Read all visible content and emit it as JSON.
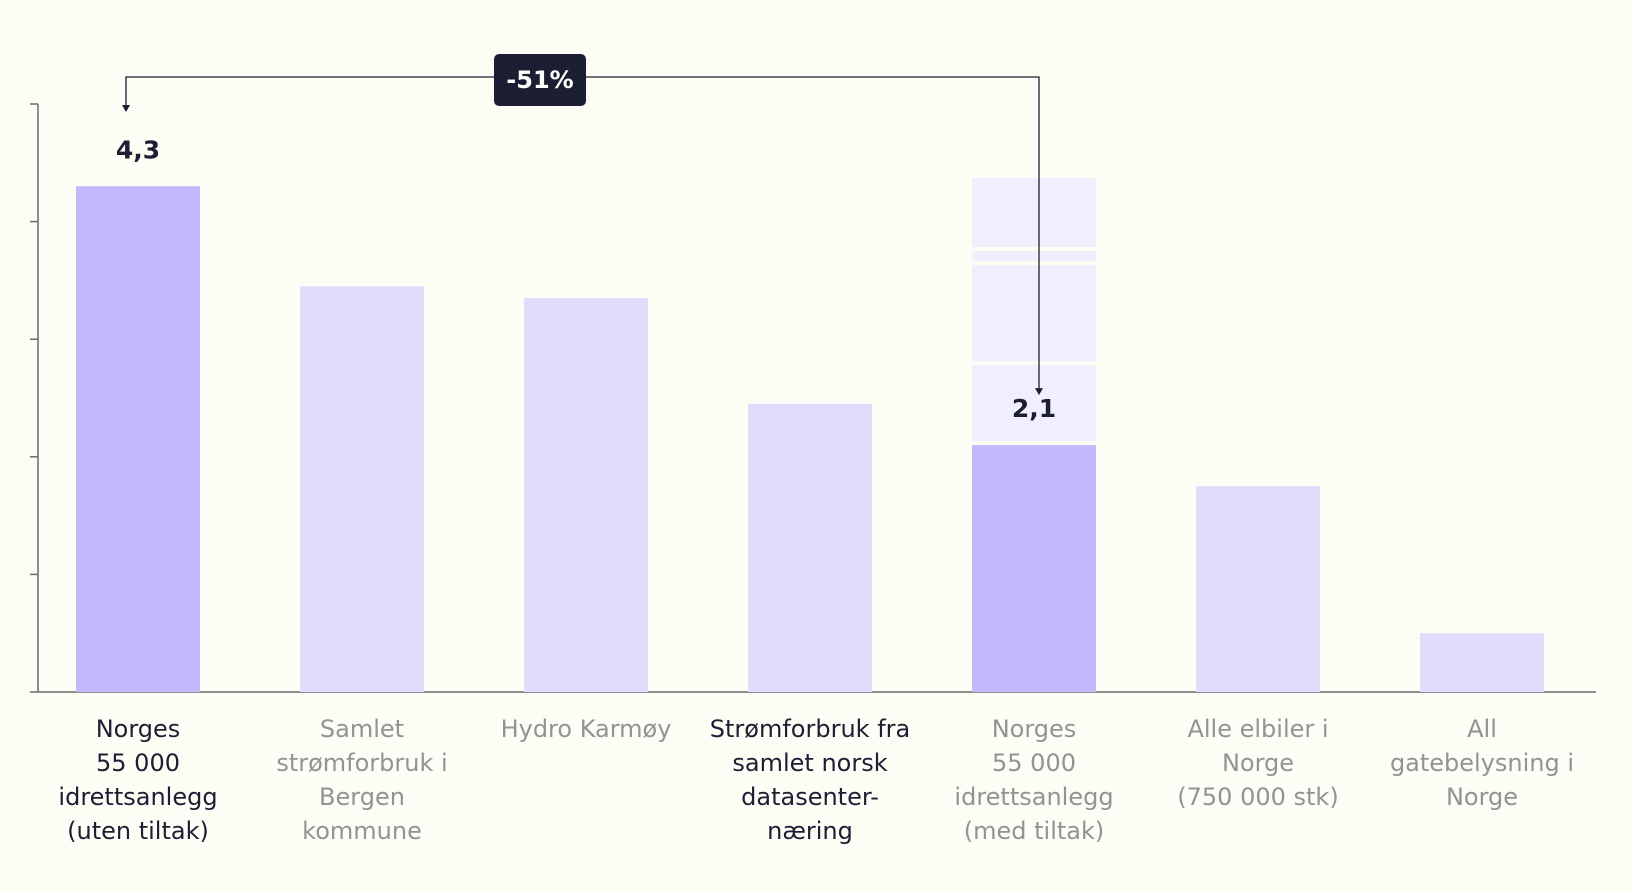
{
  "chart_data": {
    "type": "bar",
    "title": "",
    "xlabel": "",
    "ylabel": "",
    "ylim": [
      0,
      5.2
    ],
    "y_ticks": [
      0,
      1,
      2,
      3,
      4,
      5
    ],
    "y_tick_labels_shown": false,
    "grid": false,
    "categories": [
      {
        "lines": [
          "Norges",
          "55 000",
          "idrettsanlegg",
          "(uten tiltak)"
        ],
        "emphasis": true
      },
      {
        "lines": [
          "Samlet",
          "strømforbruk i",
          "Bergen",
          "kommune"
        ],
        "emphasis": false
      },
      {
        "lines": [
          "Hydro Karmøy"
        ],
        "emphasis": false
      },
      {
        "lines": [
          "Strømforbruk fra",
          "samlet norsk",
          "datasenter-",
          "næring"
        ],
        "emphasis": true
      },
      {
        "lines": [
          "Norges",
          "55 000",
          "idrettsanlegg",
          "(med tiltak)"
        ],
        "emphasis": false
      },
      {
        "lines": [
          "Alle elbiler i",
          "Norge",
          "(750 000 stk)"
        ],
        "emphasis": false
      },
      {
        "lines": [
          "All",
          "gatebelysning i",
          "Norge"
        ],
        "emphasis": false
      }
    ],
    "values": [
      4.3,
      3.45,
      3.35,
      2.45,
      2.1,
      1.75,
      0.5
    ],
    "value_labels": [
      "4,3",
      "",
      "",
      "",
      "2,1",
      "",
      ""
    ],
    "highlighted": [
      true,
      false,
      false,
      false,
      true,
      false,
      false
    ],
    "savings_segments": [
      0.68,
      0.85,
      0.12,
      0.62
    ],
    "annotation": {
      "label": "-51%",
      "from_category_index": 0,
      "to_category_index": 4
    },
    "colors": {
      "highlight": "#c3b8fb",
      "default": "#e1dbfd",
      "savings": "#f1effd",
      "axis": "#6b6b6b",
      "label_emphasis": "#1c1f33",
      "label_muted": "#939393",
      "value_label": "#1c1f33",
      "annotation_bg": "#1c1f33",
      "annotation_text": "#ffffff"
    }
  }
}
